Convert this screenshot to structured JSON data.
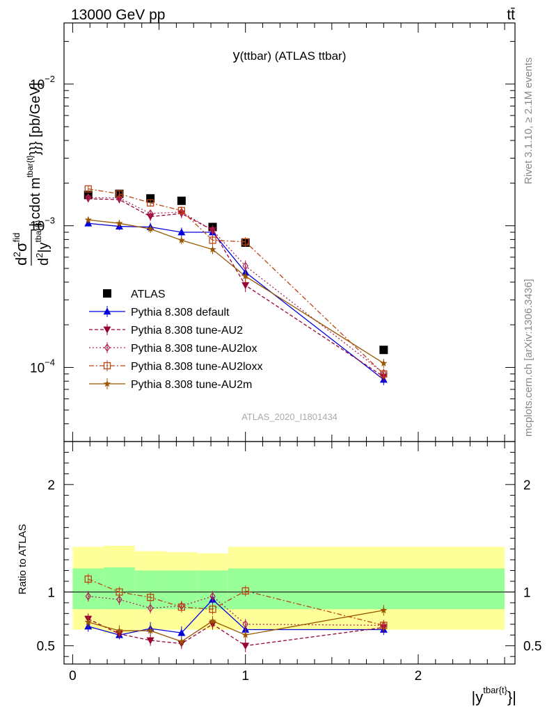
{
  "header": {
    "left": "13000 GeV pp",
    "right": "tt̄",
    "side_top": "Rivet 3.1.10, ≥ 2.1M events",
    "side_bottom": "mcplots.cern.ch [arXiv:1306.3436]"
  },
  "colors": {
    "atlas": "#000000",
    "default": "#0000dd",
    "au2": "#990033",
    "au2lox": "#aa2255",
    "au2loxx": "#bb4411",
    "au2m": "#995500",
    "band_inner": "#99ff99",
    "band_outer": "#ffff99"
  },
  "chart_data": [
    {
      "type": "line",
      "title": "y(ttbar) (ATLAS ttbar)",
      "watermark": "ATLAS_2020_I1801434",
      "ylabel_parts": {
        "d1": "d",
        "sup1": "2",
        "sigma": "σ",
        "fid": "fid",
        "d2": "d",
        "sup2": "2",
        "yy": "|y",
        "tbar": "tbar{t}",
        "bar": "| cdot m",
        "tbar2": "tbar{t}",
        "unit": "}}} [pb/GeV]"
      },
      "y_scale": "log",
      "ylim": [
        3e-05,
        0.027
      ],
      "xlim": [
        -0.05,
        2.56
      ],
      "x_ticks": [
        0,
        1,
        2
      ],
      "y_tick_labels": [
        {
          "base": "10",
          "exp": "−2",
          "value": 0.01
        },
        {
          "base": "10",
          "exp": "−3",
          "value": 0.001
        },
        {
          "base": "10",
          "exp": "−4",
          "value": 0.0001
        }
      ],
      "legend_position": "lower-left",
      "x": [
        0.09,
        0.27,
        0.45,
        0.63,
        0.81,
        1.0,
        1.8
      ],
      "series": [
        {
          "name": "ATLAS",
          "key": "atlas",
          "marker": "square",
          "values": [
            0.00165,
            0.00168,
            0.00156,
            0.0015,
            0.00098,
            0.00076,
            0.000133
          ]
        },
        {
          "name": "Pythia 8.308 default",
          "key": "default",
          "marker": "triangle-up",
          "dash": "",
          "values": [
            0.00104,
            0.00099,
            0.00098,
            0.0009,
            0.0009,
            0.00047,
            8.2e-05
          ],
          "errors": [
            5e-05,
            6e-05,
            7e-05,
            7e-05,
            8e-05,
            5e-05,
            7e-06
          ]
        },
        {
          "name": "Pythia 8.308 tune-AU2",
          "key": "au2",
          "marker": "triangle-down",
          "dash": "5,3",
          "values": [
            0.00155,
            0.00153,
            0.00116,
            0.00122,
            0.00093,
            0.00038,
            8.6e-05
          ],
          "errors": [
            8e-05,
            9e-05,
            8e-05,
            9e-05,
            8e-05,
            4e-05,
            7e-06
          ]
        },
        {
          "name": "Pythia 8.308 tune-AU2lox",
          "key": "au2lox",
          "marker": "diamond-open",
          "dash": "2,3",
          "values": [
            0.00158,
            0.00157,
            0.00122,
            0.00125,
            0.00093,
            0.00052,
            9.1e-05
          ],
          "errors": [
            8e-05,
            9e-05,
            8e-05,
            9e-05,
            8e-05,
            5e-05,
            7e-06
          ]
        },
        {
          "name": "Pythia 8.308 tune-AU2loxx",
          "key": "au2loxx",
          "marker": "square-open",
          "dash": "7,3,2,3",
          "values": [
            0.00182,
            0.00168,
            0.00145,
            0.00128,
            0.00079,
            0.00077,
            9e-05
          ],
          "errors": [
            9e-05,
            9e-05,
            9e-05,
            9e-05,
            6e-05,
            6e-05,
            7e-06
          ]
        },
        {
          "name": "Pythia 8.308 tune-AU2m",
          "key": "au2m",
          "marker": "star",
          "dash": "",
          "values": [
            0.0011,
            0.00104,
            0.00095,
            0.00079,
            0.00068,
            0.00044,
            0.000107
          ],
          "errors": [
            6e-05,
            6e-05,
            6e-05,
            5e-05,
            5e-05,
            4e-05,
            8e-06
          ]
        }
      ]
    },
    {
      "type": "line",
      "ylabel": "Ratio to ATLAS",
      "xlabel_main": "|y",
      "xlabel_sup": "tbar{t}",
      "xlabel_end": "}|",
      "ylim": [
        0.33,
        2.4
      ],
      "xlim": [
        -0.05,
        2.56
      ],
      "y_tick_labels": [
        "0.5",
        "1",
        "2"
      ],
      "y_ticks": [
        0.5,
        1,
        2
      ],
      "x_tick_labels": [
        "0",
        "1",
        "2"
      ],
      "x_ticks": [
        0,
        1,
        2
      ],
      "bands": [
        {
          "x0": 0.0,
          "x1": 0.18,
          "in_lo": 0.84,
          "in_hi": 1.22,
          "out_lo": 0.65,
          "out_hi": 1.42
        },
        {
          "x0": 0.18,
          "x1": 0.36,
          "in_lo": 0.84,
          "in_hi": 1.23,
          "out_lo": 0.62,
          "out_hi": 1.43
        },
        {
          "x0": 0.36,
          "x1": 0.54,
          "in_lo": 0.84,
          "in_hi": 1.2,
          "out_lo": 0.65,
          "out_hi": 1.38
        },
        {
          "x0": 0.54,
          "x1": 0.72,
          "in_lo": 0.84,
          "in_hi": 1.2,
          "out_lo": 0.65,
          "out_hi": 1.37
        },
        {
          "x0": 0.72,
          "x1": 0.9,
          "in_lo": 0.84,
          "in_hi": 1.2,
          "out_lo": 0.65,
          "out_hi": 1.36
        },
        {
          "x0": 0.9,
          "x1": 2.5,
          "in_lo": 0.84,
          "in_hi": 1.22,
          "out_lo": 0.65,
          "out_hi": 1.42
        }
      ],
      "x": [
        0.09,
        0.27,
        0.45,
        0.63,
        0.81,
        1.0,
        1.8
      ],
      "series": [
        {
          "key": "default",
          "values": [
            0.68,
            0.6,
            0.66,
            0.62,
            0.93,
            0.65,
            0.65
          ],
          "errors": [
            0.05,
            0.04,
            0.06,
            0.06,
            0.06,
            0.05,
            0.05
          ]
        },
        {
          "key": "au2",
          "values": [
            0.75,
            0.61,
            0.55,
            0.52,
            0.7,
            0.5,
            0.67
          ],
          "errors": [
            0.05,
            0.04,
            0.05,
            0.05,
            0.05,
            0.06,
            0.05
          ]
        },
        {
          "key": "au2lox",
          "values": [
            0.96,
            0.93,
            0.85,
            0.87,
            0.96,
            0.7,
            0.69
          ],
          "errors": [
            0.05,
            0.05,
            0.05,
            0.05,
            0.05,
            0.05,
            0.05
          ]
        },
        {
          "key": "au2loxx",
          "values": [
            1.12,
            1.0,
            0.95,
            0.86,
            0.84,
            1.01,
            0.69
          ],
          "errors": [
            0.05,
            0.05,
            0.05,
            0.05,
            0.05,
            0.05,
            0.05
          ]
        },
        {
          "key": "au2m",
          "values": [
            0.72,
            0.64,
            0.64,
            0.54,
            0.73,
            0.6,
            0.83
          ],
          "errors": [
            0.05,
            0.05,
            0.05,
            0.05,
            0.05,
            0.05,
            0.05
          ]
        }
      ]
    }
  ]
}
